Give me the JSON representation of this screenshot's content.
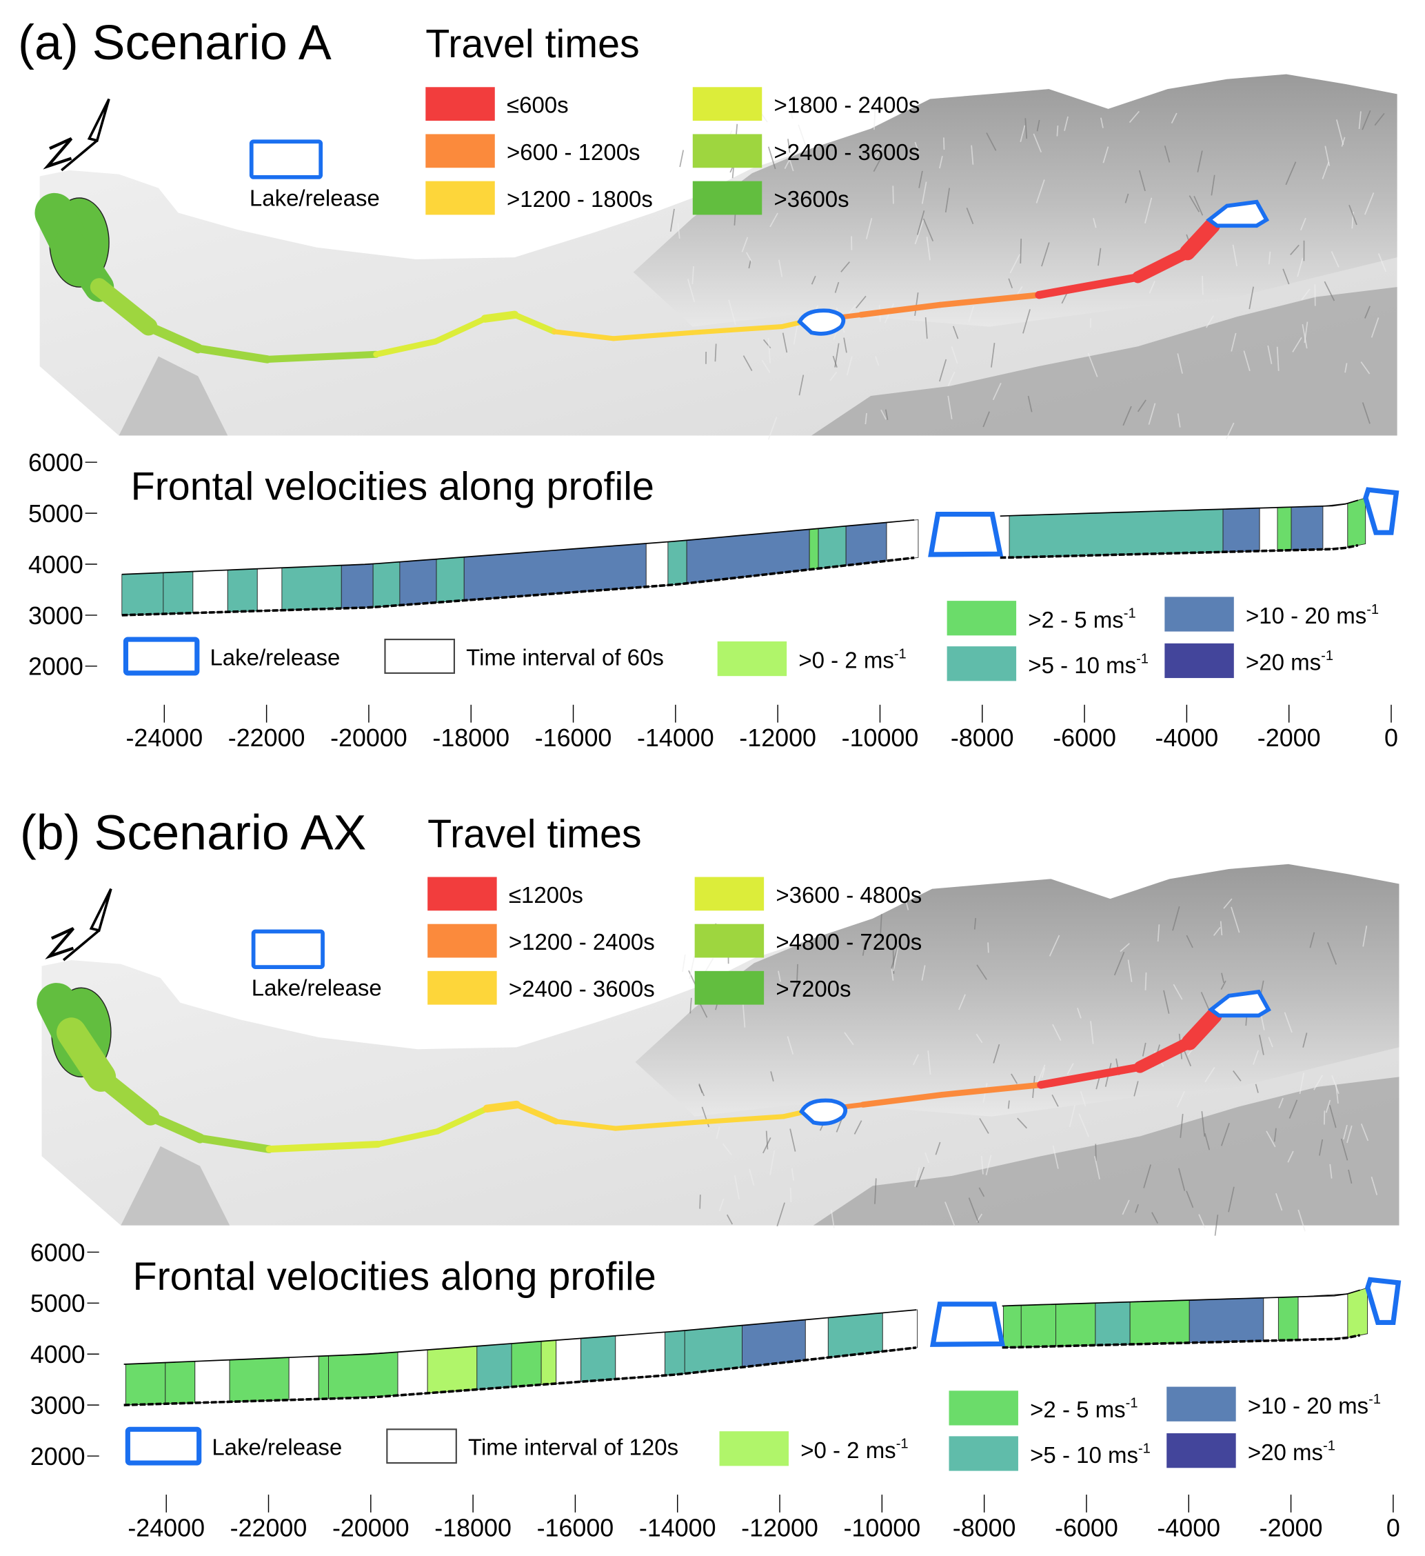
{
  "colors": {
    "lake": "#1a6ff0",
    "tt": [
      "#f23d3d",
      "#fb8a3c",
      "#fdd63a",
      "#dced3a",
      "#9ed63f",
      "#62be3f"
    ],
    "vel": {
      "w": "#ffffff",
      "c1": "#b0f56a",
      "c2": "#6bdc6a",
      "c3": "#60bcaa",
      "c4": "#5b80b4",
      "c5": "#43459b"
    }
  },
  "panels": [
    {
      "title": "(a) Scenario A",
      "travel_title": "Travel times",
      "travel_legend": [
        "≤600s",
        ">600 - 1200s",
        ">1200 - 1800s",
        ">1800 - 2400s",
        ">2400 - 3600s",
        ">3600s"
      ],
      "lake_label": "Lake/release",
      "profile_title": "Frontal velocities along profile",
      "interval_label": "Time interval of 60s",
      "velocity_legend": [
        {
          "label": ">0 - 2 ",
          "unit": "ms",
          "sup": "-1"
        },
        {
          "label": ">2 - 5 ",
          "unit": "ms",
          "sup": "-1"
        },
        {
          "label": ">5 - 10 ",
          "unit": "ms",
          "sup": "-1"
        },
        {
          "label": ">10 - 20 ",
          "unit": "ms",
          "sup": "-1"
        },
        {
          "label": ">20 ",
          "unit": "ms",
          "sup": "-1"
        }
      ]
    },
    {
      "title": "(b) Scenario AX",
      "travel_title": "Travel times",
      "travel_legend": [
        "≤1200s",
        ">1200 - 2400s",
        ">2400 - 3600s",
        ">3600 - 4800s",
        ">4800 - 7200s",
        ">7200s"
      ],
      "lake_label": "Lake/release",
      "profile_title": "Frontal velocities along profile",
      "interval_label": "Time interval of 120s",
      "velocity_legend": [
        {
          "label": ">0 - 2 ",
          "unit": "ms",
          "sup": "-1"
        },
        {
          "label": ">2 - 5 ",
          "unit": "ms",
          "sup": "-1"
        },
        {
          "label": ">5 - 10 ",
          "unit": "ms",
          "sup": "-1"
        },
        {
          "label": ">10 - 20 ",
          "unit": "ms",
          "sup": "-1"
        },
        {
          "label": ">20 ",
          "unit": "ms",
          "sup": "-1"
        }
      ]
    }
  ],
  "chart_data": [
    {
      "type": "area",
      "title": "Frontal velocities along profile (Scenario A)",
      "xlim": [
        -25000,
        0
      ],
      "ylim": [
        2000,
        6000
      ],
      "xticks": [
        "-24000",
        "-22000",
        "-20000",
        "-18000",
        "-16000",
        "-14000",
        "-12000",
        "-10000",
        "-8000",
        "-6000",
        "-4000",
        "-2000",
        "0"
      ],
      "yticks": [
        "6000",
        "5000",
        "4000",
        "3000",
        "2000"
      ],
      "profile_top": [
        [
          -24830,
          3800
        ],
        [
          -20000,
          4000
        ],
        [
          -14000,
          4450
        ],
        [
          -9300,
          4870
        ],
        [
          -7500,
          4950
        ],
        [
          -1000,
          5150
        ],
        [
          -500,
          5300
        ]
      ],
      "profile_bottom": [
        [
          -24830,
          3000
        ],
        [
          -20000,
          3150
        ],
        [
          -14000,
          3600
        ],
        [
          -9300,
          4130
        ],
        [
          -7500,
          4130
        ],
        [
          -1000,
          4300
        ],
        [
          -500,
          4400
        ]
      ],
      "lakes": [
        [
          -9100,
          -7650
        ],
        [
          -400,
          0
        ]
      ],
      "segments": [
        [
          -24830,
          -24020,
          "c3"
        ],
        [
          -24020,
          -23440,
          "c3"
        ],
        [
          -23440,
          -22760,
          "w"
        ],
        [
          -22760,
          -22180,
          "c3"
        ],
        [
          -22180,
          -21700,
          "w"
        ],
        [
          -21700,
          -20535,
          "c3"
        ],
        [
          -20535,
          -19916,
          "c4"
        ],
        [
          -19916,
          -19394,
          "c3"
        ],
        [
          -19394,
          -18677,
          "c4"
        ],
        [
          -18677,
          -18135,
          "c3"
        ],
        [
          -18135,
          -14574,
          "c4"
        ],
        [
          -14574,
          -14148,
          "w"
        ],
        [
          -14148,
          -13780,
          "c3"
        ],
        [
          -13780,
          -11380,
          "c4"
        ],
        [
          -11380,
          -11206,
          "c2"
        ],
        [
          -11206,
          -10665,
          "c3"
        ],
        [
          -10665,
          -9871,
          "c4"
        ],
        [
          -9871,
          -9252,
          "w"
        ],
        [
          -7471,
          -3290,
          "c3"
        ],
        [
          -3290,
          -2574,
          "c4"
        ],
        [
          -2574,
          -2226,
          "w"
        ],
        [
          -2226,
          -1955,
          "c2"
        ],
        [
          -1955,
          -1336,
          "c4"
        ],
        [
          -1336,
          -852,
          "w"
        ],
        [
          -852,
          -503,
          "c2"
        ]
      ]
    },
    {
      "type": "area",
      "title": "Frontal velocities along profile (Scenario AX)",
      "xlim": [
        -25000,
        0
      ],
      "ylim": [
        2000,
        6000
      ],
      "xticks": [
        "-24000",
        "-22000",
        "-20000",
        "-18000",
        "-16000",
        "-14000",
        "-12000",
        "-10000",
        "-8000",
        "-6000",
        "-4000",
        "-2000",
        "0"
      ],
      "yticks": [
        "6000",
        "5000",
        "4000",
        "3000",
        "2000"
      ],
      "profile_top": [
        [
          -24830,
          3800
        ],
        [
          -20000,
          4000
        ],
        [
          -14000,
          4450
        ],
        [
          -9300,
          4870
        ],
        [
          -7500,
          4950
        ],
        [
          -1000,
          5150
        ],
        [
          -500,
          5300
        ]
      ],
      "profile_bottom": [
        [
          -24830,
          3000
        ],
        [
          -20000,
          3150
        ],
        [
          -14000,
          3600
        ],
        [
          -9300,
          4130
        ],
        [
          -7500,
          4130
        ],
        [
          -1000,
          4300
        ],
        [
          -500,
          4400
        ]
      ],
      "lakes": [
        [
          -9100,
          -7650
        ],
        [
          -400,
          0
        ]
      ],
      "segments": [
        [
          -24794,
          -24019,
          "c2"
        ],
        [
          -24019,
          -23439,
          "c2"
        ],
        [
          -23439,
          -22761,
          "w"
        ],
        [
          -22761,
          -21600,
          "c2"
        ],
        [
          -21600,
          -21019,
          "w"
        ],
        [
          -21019,
          -20826,
          "c2"
        ],
        [
          -20826,
          -19471,
          "c2"
        ],
        [
          -19471,
          -18890,
          "w"
        ],
        [
          -18890,
          -17923,
          "c1"
        ],
        [
          -17923,
          -17245,
          "c3"
        ],
        [
          -17245,
          -16665,
          "c2"
        ],
        [
          -16665,
          -16374,
          "c1"
        ],
        [
          -16374,
          -15890,
          "w"
        ],
        [
          -15890,
          -15213,
          "c3"
        ],
        [
          -15213,
          -14245,
          "w"
        ],
        [
          -14245,
          -13858,
          "c3"
        ],
        [
          -13858,
          -12736,
          "c3"
        ],
        [
          -12736,
          -11497,
          "c4"
        ],
        [
          -11497,
          -11052,
          "w"
        ],
        [
          -11052,
          -9987,
          "c3"
        ],
        [
          -9987,
          -9310,
          "w"
        ],
        [
          -7626,
          -7277,
          "c2"
        ],
        [
          -7277,
          -6600,
          "c2"
        ],
        [
          -6600,
          -5826,
          "c2"
        ],
        [
          -5826,
          -5148,
          "c3"
        ],
        [
          -5148,
          -3987,
          "c2"
        ],
        [
          -3987,
          -2536,
          "c4"
        ],
        [
          -2536,
          -2245,
          "w"
        ],
        [
          -2245,
          -1858,
          "c2"
        ],
        [
          -1858,
          -890,
          "w"
        ],
        [
          -890,
          -503,
          "c1"
        ]
      ]
    }
  ]
}
